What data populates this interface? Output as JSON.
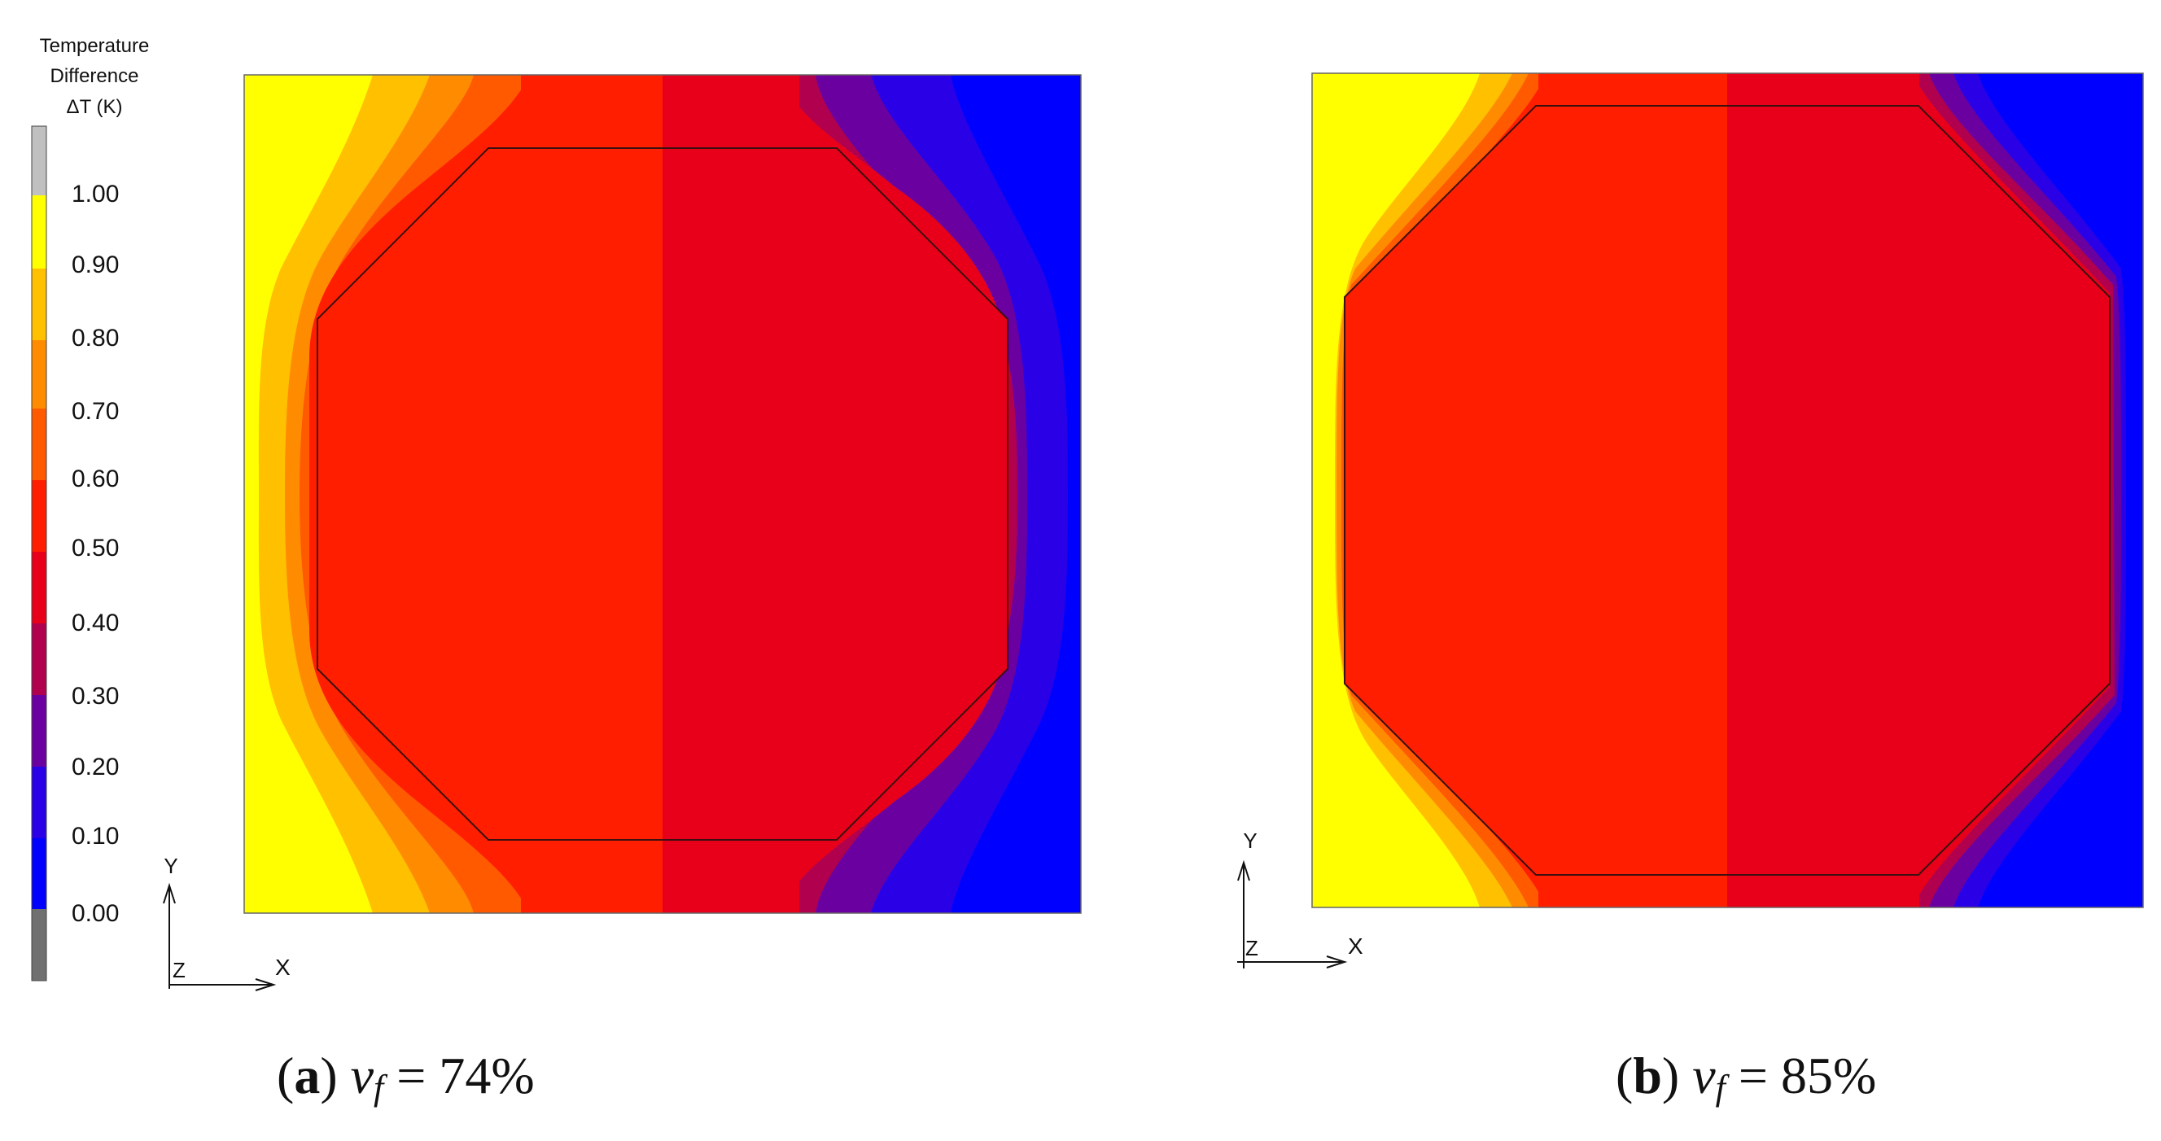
{
  "legend": {
    "title_lines": [
      "Temperature",
      "Difference",
      "ΔT (K)"
    ],
    "ticks": [
      "1.00",
      "0.90",
      "0.80",
      "0.70",
      "0.60",
      "0.50",
      "0.40",
      "0.30",
      "0.20",
      "0.10",
      "0.00"
    ],
    "bands": [
      {
        "color": "#C0C0C0"
      },
      {
        "color": "#FFFF00"
      },
      {
        "color": "#FFC000"
      },
      {
        "color": "#FF8C00"
      },
      {
        "color": "#FF5A00"
      },
      {
        "color": "#FF1E00"
      },
      {
        "color": "#E8001A"
      },
      {
        "color": "#B0004E"
      },
      {
        "color": "#6A00A0"
      },
      {
        "color": "#2A00E6"
      },
      {
        "color": "#0000FF"
      },
      {
        "color": "#707070"
      }
    ]
  },
  "axes_labels": {
    "y": "Y",
    "x": "X",
    "z": "Z"
  },
  "panels": [
    {
      "id": "a",
      "letter": "a",
      "variable": "v",
      "subscript": "f",
      "value_text": " = 74%"
    },
    {
      "id": "b",
      "letter": "b",
      "variable": "v",
      "subscript": "f",
      "value_text": " = 85%"
    }
  ],
  "colors": {
    "yellow": "#FFFF00",
    "light_orange": "#FFC000",
    "orange": "#FF8C00",
    "deep_orange": "#FF5A00",
    "red_orange": "#FF1E00",
    "crimson": "#E8001A",
    "magenta": "#B0004E",
    "purple": "#6A00A0",
    "indigo": "#2A00E6",
    "blue": "#0000FF"
  }
}
